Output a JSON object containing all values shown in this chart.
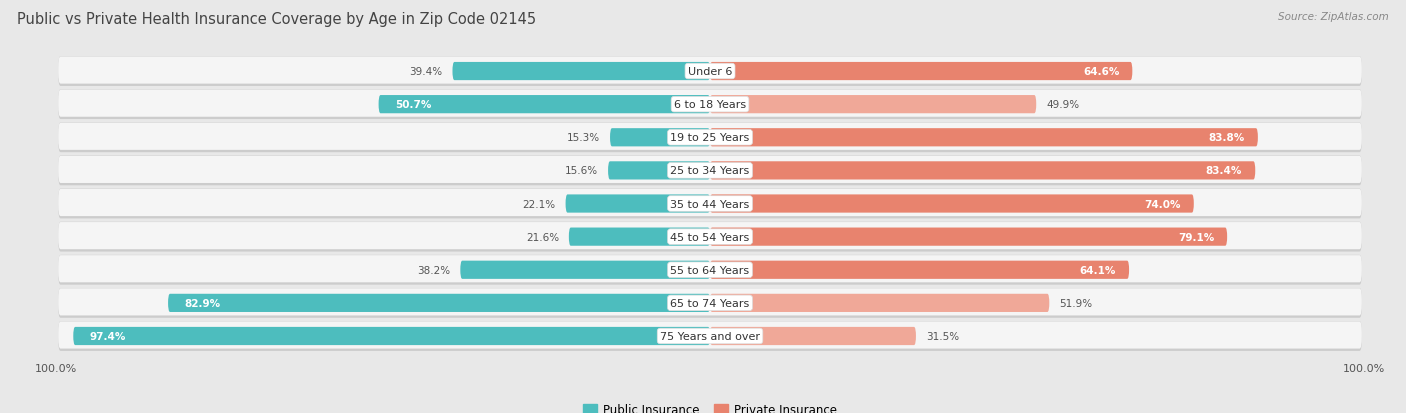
{
  "title": "Public vs Private Health Insurance Coverage by Age in Zip Code 02145",
  "source": "Source: ZipAtlas.com",
  "categories": [
    "Under 6",
    "6 to 18 Years",
    "19 to 25 Years",
    "25 to 34 Years",
    "35 to 44 Years",
    "45 to 54 Years",
    "55 to 64 Years",
    "65 to 74 Years",
    "75 Years and over"
  ],
  "public_values": [
    39.4,
    50.7,
    15.3,
    15.6,
    22.1,
    21.6,
    38.2,
    82.9,
    97.4
  ],
  "private_values": [
    64.6,
    49.9,
    83.8,
    83.4,
    74.0,
    79.1,
    64.1,
    51.9,
    31.5
  ],
  "public_color": "#4dbdbe",
  "private_color": "#e8836e",
  "private_color_light": "#f0a898",
  "bg_color": "#e8e8e8",
  "row_color": "#f5f5f5",
  "max_val": 100.0,
  "title_fontsize": 10.5,
  "label_fontsize": 8.0,
  "value_fontsize": 7.5,
  "legend_fontsize": 8.5,
  "axis_label_fontsize": 8.0
}
